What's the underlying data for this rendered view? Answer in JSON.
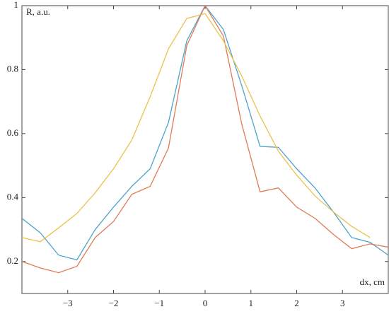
{
  "chart_data": {
    "type": "line",
    "x_label": "dx, cm",
    "y_label": "R, a.u.",
    "x": [
      -4,
      -3.6,
      -3.2,
      -2.8,
      -2.4,
      -2,
      -1.6,
      -1.2,
      -0.8,
      -0.4,
      0,
      0.4,
      0.8,
      1.2,
      1.6,
      2,
      2.4,
      2.8,
      3.2,
      3.6,
      4
    ],
    "series": [
      {
        "color": "#4da3cc",
        "values": [
          0.335,
          0.29,
          0.22,
          0.205,
          0.3,
          0.37,
          0.435,
          0.49,
          0.635,
          0.89,
          1.0,
          0.925,
          0.75,
          0.56,
          0.557,
          0.49,
          0.43,
          0.355,
          0.275,
          0.26,
          0.22
        ]
      },
      {
        "color": "#e07b55",
        "values": [
          0.2,
          0.18,
          0.165,
          0.185,
          0.275,
          0.325,
          0.41,
          0.435,
          0.555,
          0.875,
          1.0,
          0.905,
          0.63,
          0.418,
          0.43,
          0.37,
          0.335,
          0.285,
          0.24,
          0.255,
          0.245
        ]
      },
      {
        "color": "#ebc24c",
        "values": [
          0.275,
          0.262,
          0.305,
          0.35,
          0.415,
          0.49,
          0.58,
          0.715,
          0.865,
          0.96,
          0.975,
          0.89,
          0.78,
          0.655,
          0.545,
          0.47,
          0.405,
          0.355,
          0.31,
          0.275,
          null
        ]
      }
    ],
    "xlim": [
      -4,
      4
    ],
    "xticks": [
      {
        "value": -3,
        "label": "−3"
      },
      {
        "value": -2,
        "label": "−2"
      },
      {
        "value": -1,
        "label": "−1"
      },
      0,
      1,
      2,
      3
    ],
    "ylim": [
      0.1,
      1
    ],
    "yticks": [
      0.2,
      0.4,
      0.6,
      0.8,
      1
    ],
    "grid": false
  }
}
